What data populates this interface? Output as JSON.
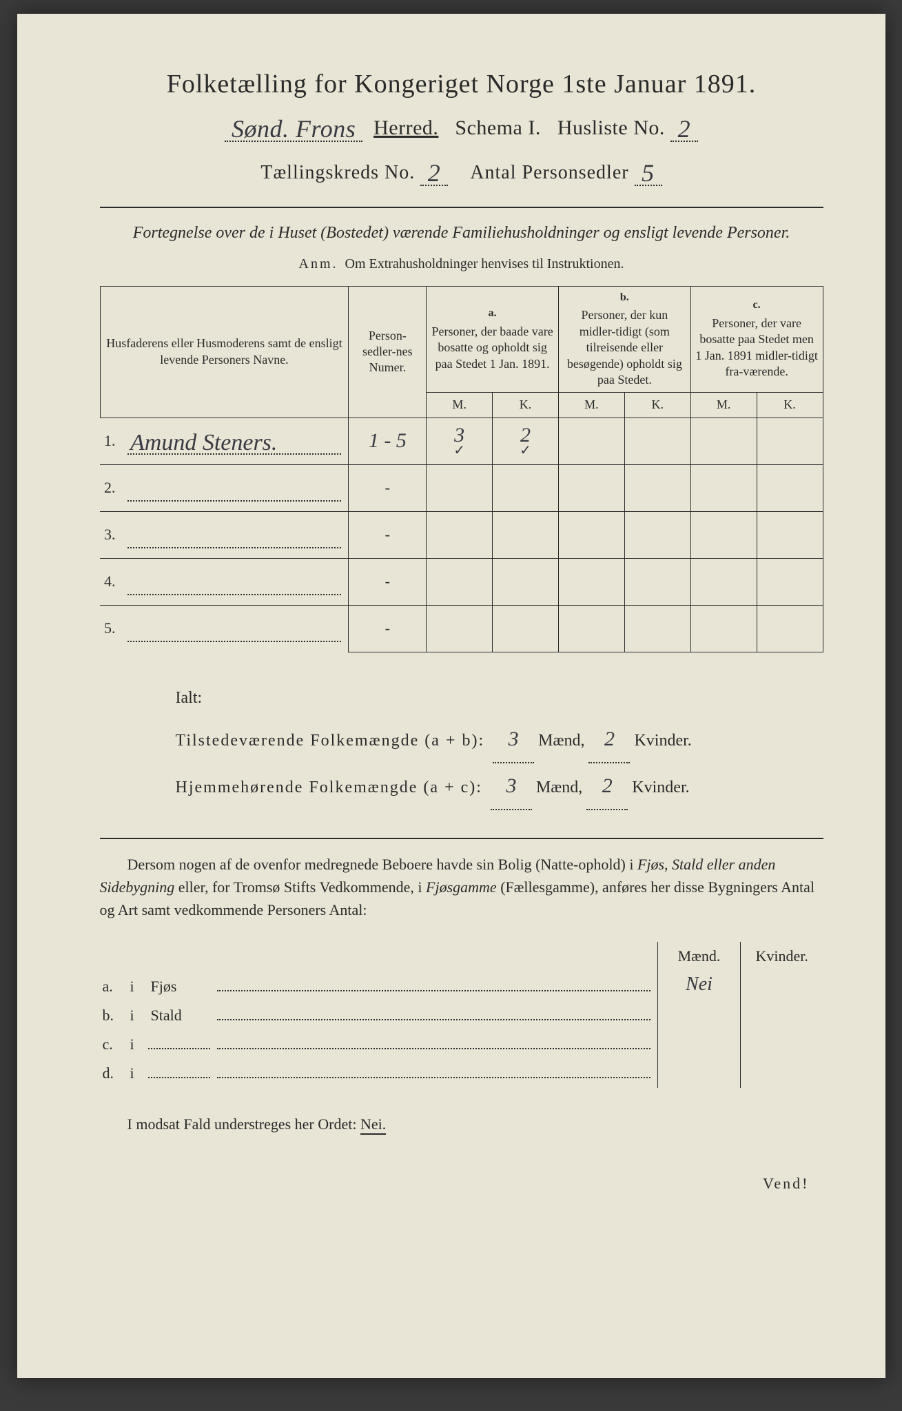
{
  "colors": {
    "page_bg": "#e8e5d6",
    "text": "#2a2a2a",
    "handwriting": "#3a3a42",
    "outer_bg": "#3a3a3a"
  },
  "fonts": {
    "printed": "Times New Roman",
    "handwritten": "Brush Script MT"
  },
  "header": {
    "title": "Folketælling for Kongeriget Norge 1ste Januar 1891.",
    "district_hw": "Sønd. Frons",
    "herred": "Herred.",
    "schema": "Schema I.",
    "husliste_label": "Husliste No.",
    "husliste_no": "2",
    "tkreds_label": "Tællingskreds No.",
    "tkreds_no": "2",
    "antal_label": "Antal Personsedler",
    "antal_no": "5"
  },
  "subtitle": "Fortegnelse over de i Huset (Bostedet) værende Familiehusholdninger og ensligt levende Personer.",
  "anm_label": "Anm.",
  "anm_text": "Om Extrahusholdninger henvises til Instruktionen.",
  "table": {
    "col_name": "Husfaderens eller Husmoderens samt de ensligt levende Personers Navne.",
    "col_numer": "Person-sedler-nes Numer.",
    "col_a_label": "a.",
    "col_a": "Personer, der baade vare bosatte og opholdt sig paa Stedet 1 Jan. 1891.",
    "col_b_label": "b.",
    "col_b": "Personer, der kun midler-tidigt (som tilreisende eller besøgende) opholdt sig paa Stedet.",
    "col_c_label": "c.",
    "col_c": "Personer, der vare bosatte paa Stedet men 1 Jan. 1891 midler-tidigt fra-værende.",
    "mk_m": "M.",
    "mk_k": "K.",
    "rows": [
      {
        "num": "1.",
        "name_hw": "Amund Steners.",
        "numer": "1 - 5",
        "a_m": "3",
        "a_k": "2",
        "check_m": "✓",
        "check_k": "✓"
      },
      {
        "num": "2.",
        "name_hw": "",
        "numer": "-"
      },
      {
        "num": "3.",
        "name_hw": "",
        "numer": "-"
      },
      {
        "num": "4.",
        "name_hw": "",
        "numer": "-"
      },
      {
        "num": "5.",
        "name_hw": "",
        "numer": "-"
      }
    ]
  },
  "totals": {
    "ialt": "Ialt:",
    "line1_label": "Tilstedeværende Folkemængde (a + b):",
    "line2_label": "Hjemmehørende Folkemængde (a + c):",
    "maend": "Mænd,",
    "kvinder": "Kvinder.",
    "l1_m": "3",
    "l1_k": "2",
    "l2_m": "3",
    "l2_k": "2"
  },
  "para": {
    "p1": "Dersom nogen af de ovenfor medregnede Beboere havde sin Bolig (Natte-ophold) i ",
    "p1_i1": "Fjøs, Stald eller anden Sidebygning",
    "p1_m": " eller, for Tromsø Stifts Vedkommende, i ",
    "p1_i2": "Fjøsgamme",
    "p1_m2": " (Fællesgamme), anføres her disse Bygningers Antal og Art samt vedkommende Personers Antal:"
  },
  "buildings": {
    "header_m": "Mænd.",
    "header_k": "Kvinder.",
    "rows": [
      {
        "label": "a.",
        "i": "i",
        "type": "Fjøs",
        "m_hw": "Nei",
        "k_hw": ""
      },
      {
        "label": "b.",
        "i": "i",
        "type": "Stald",
        "m_hw": "",
        "k_hw": ""
      },
      {
        "label": "c.",
        "i": "i",
        "type": "",
        "m_hw": "",
        "k_hw": ""
      },
      {
        "label": "d.",
        "i": "i",
        "type": "",
        "m_hw": "",
        "k_hw": ""
      }
    ]
  },
  "final": {
    "text_pre": "I modsat Fald understreges her Ordet: ",
    "nei": "Nei."
  },
  "vend": "Vend!"
}
